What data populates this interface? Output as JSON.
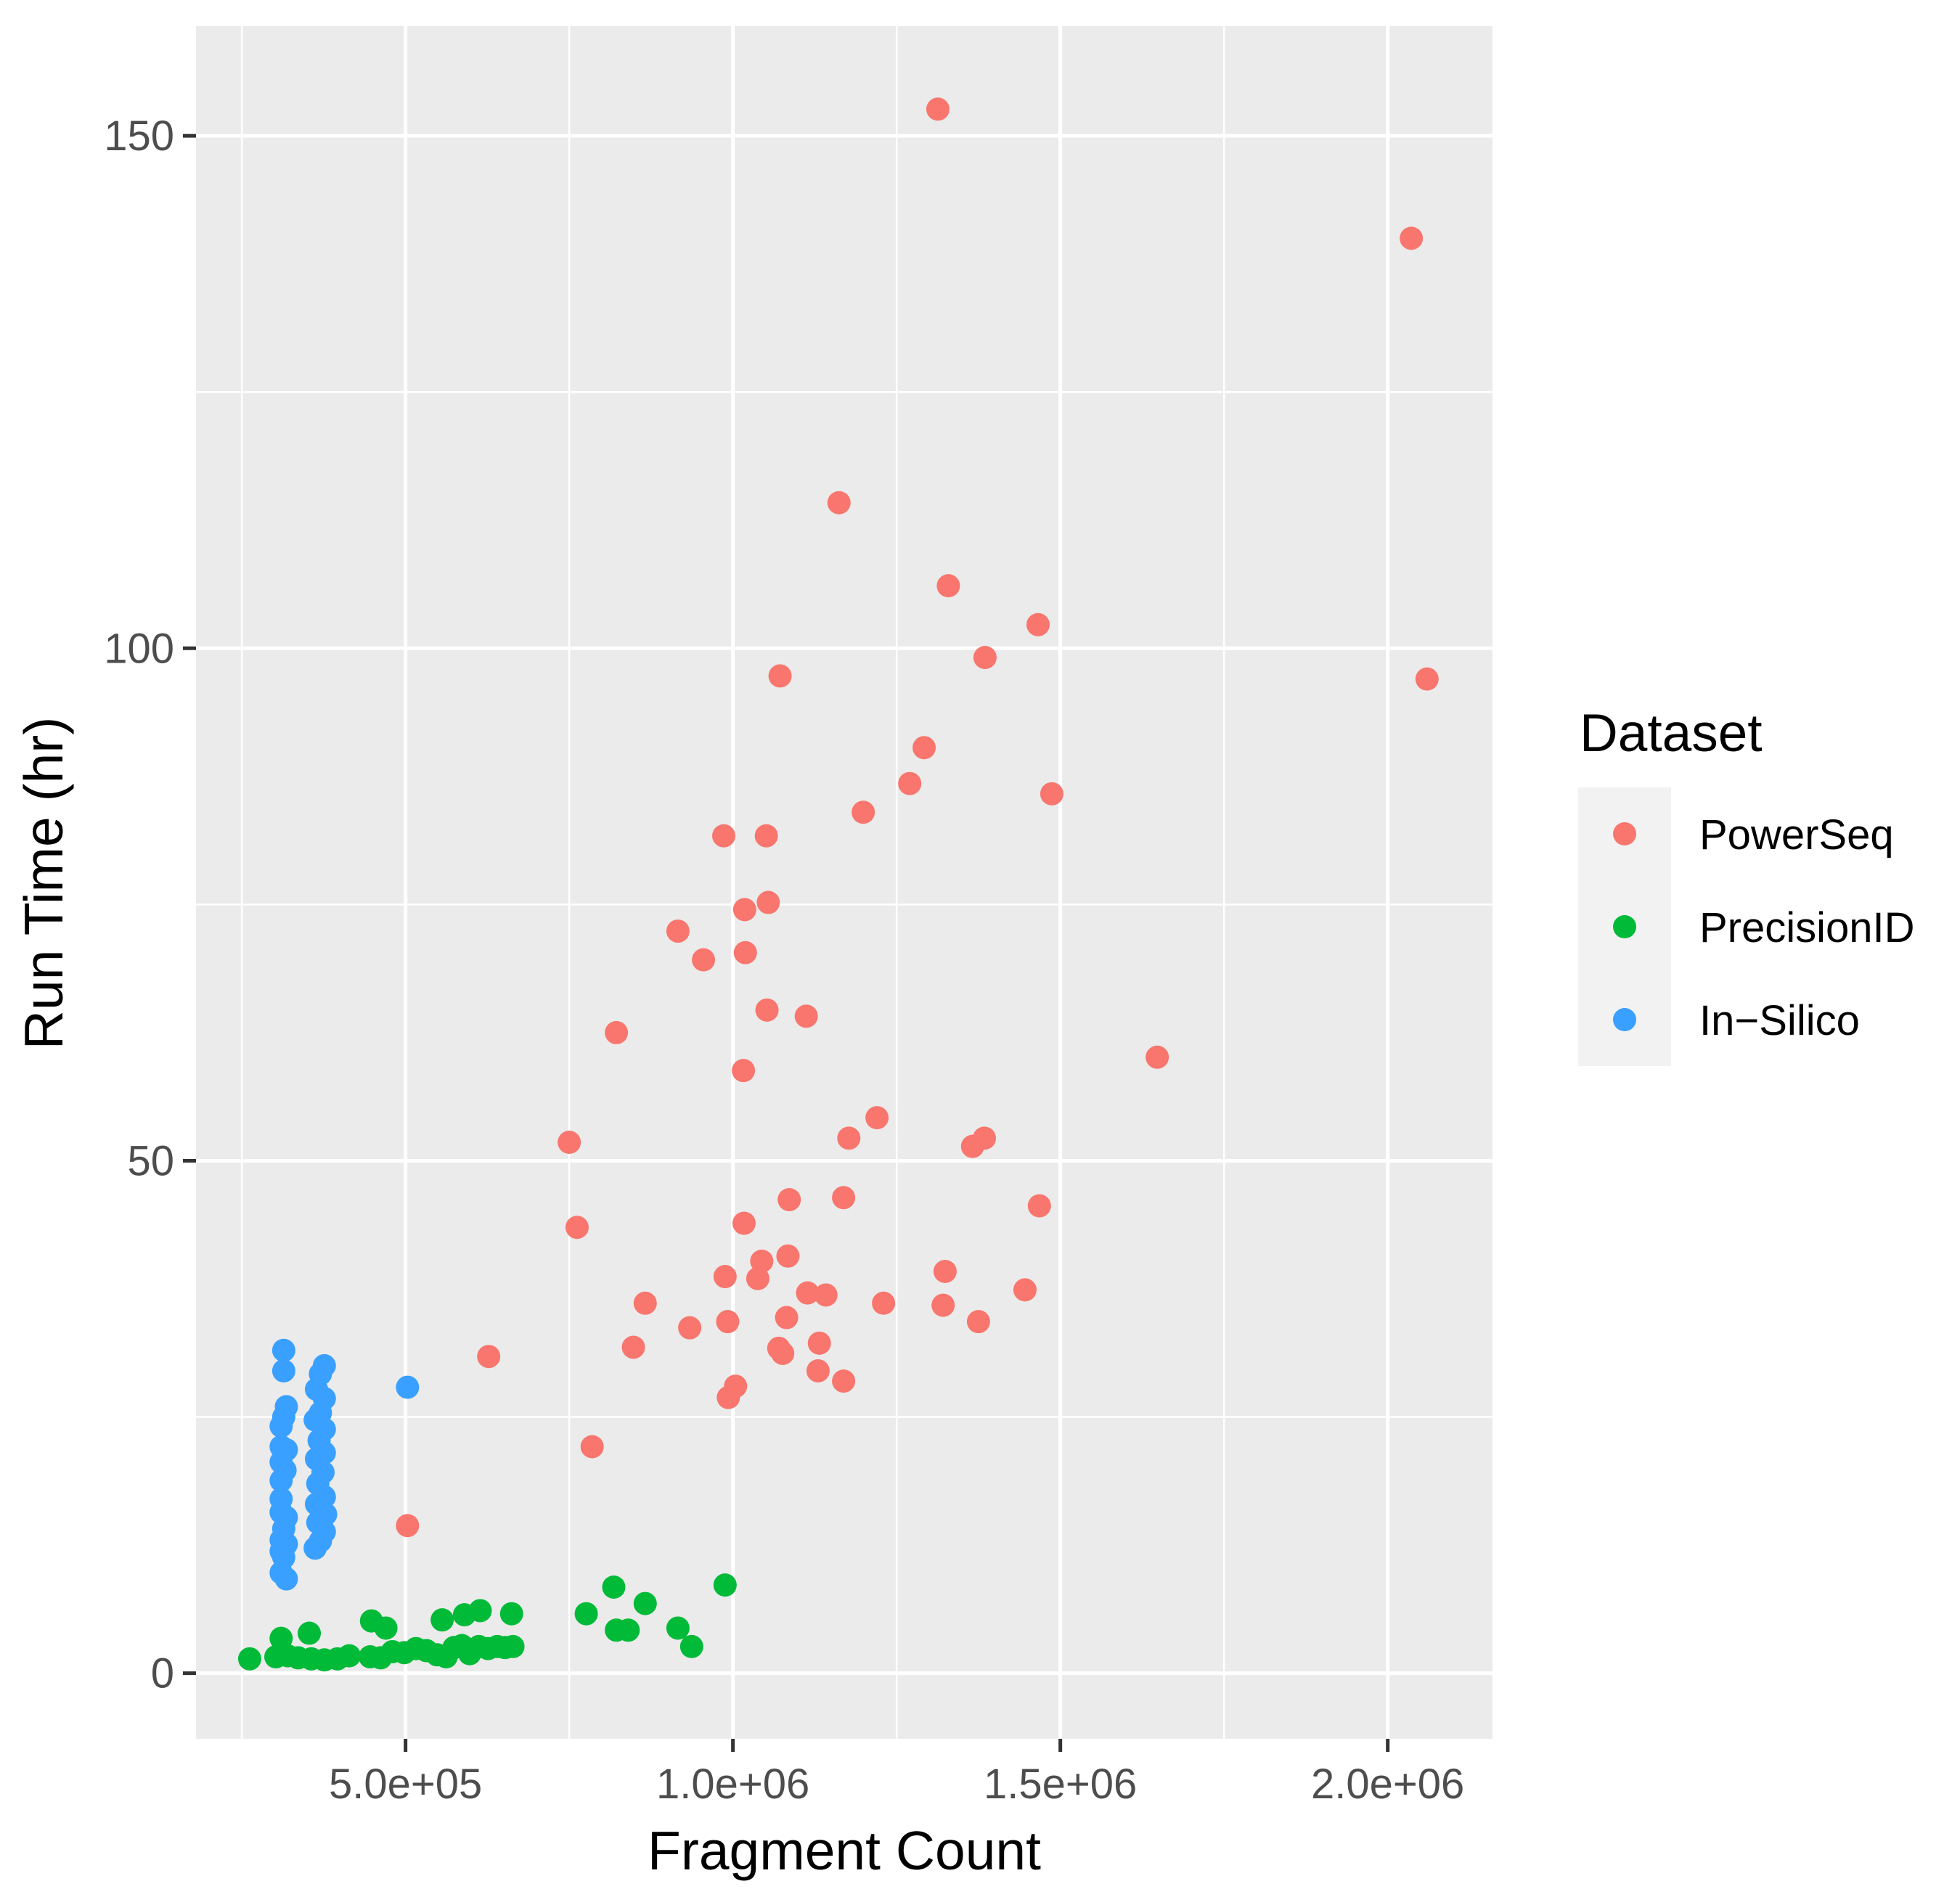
{
  "chart_data": {
    "type": "scatter",
    "xlabel": "Fragment Count",
    "ylabel": "Run Time (hr)",
    "xlim": [
      180000,
      2160000
    ],
    "ylim": [
      -6.4,
      160.7
    ],
    "x_ticks": [
      500000,
      1000000,
      1500000,
      2000000
    ],
    "x_tick_labels": [
      "5.0e+05",
      "1.0e+06",
      "1.5e+06",
      "2.0e+06"
    ],
    "y_ticks": [
      0,
      50,
      100,
      150
    ],
    "y_tick_labels": [
      "0",
      "50",
      "100",
      "150"
    ],
    "grid": true,
    "legend": {
      "title": "Dataset",
      "position": "right"
    },
    "series": [
      {
        "name": "PowerSeq",
        "color": "#F8766D",
        "points": [
          [
            1313000,
            152.6
          ],
          [
            2036000,
            140.0
          ],
          [
            1162000,
            114.2
          ],
          [
            1329000,
            106.1
          ],
          [
            1466000,
            102.3
          ],
          [
            1385000,
            99.1
          ],
          [
            1072000,
            97.3
          ],
          [
            2060000,
            97.0
          ],
          [
            1292000,
            90.3
          ],
          [
            1270000,
            86.8
          ],
          [
            1487000,
            85.8
          ],
          [
            1199000,
            84.0
          ],
          [
            986000,
            81.7
          ],
          [
            1051000,
            81.7
          ],
          [
            1054000,
            75.2
          ],
          [
            1018000,
            74.5
          ],
          [
            916000,
            72.4
          ],
          [
            1019000,
            70.3
          ],
          [
            955000,
            69.6
          ],
          [
            1052000,
            64.7
          ],
          [
            1112000,
            64.1
          ],
          [
            822000,
            62.5
          ],
          [
            1016000,
            58.8
          ],
          [
            1648000,
            60.1
          ],
          [
            1220000,
            54.2
          ],
          [
            1177000,
            52.2
          ],
          [
            1384000,
            52.2
          ],
          [
            1366000,
            51.4
          ],
          [
            750000,
            51.8
          ],
          [
            1169000,
            46.4
          ],
          [
            1086000,
            46.2
          ],
          [
            1468000,
            45.6
          ],
          [
            1017000,
            43.9
          ],
          [
            762000,
            43.5
          ],
          [
            1084000,
            40.7
          ],
          [
            1044000,
            40.2
          ],
          [
            988000,
            38.7
          ],
          [
            1038000,
            38.5
          ],
          [
            1324000,
            39.2
          ],
          [
            1114000,
            37.1
          ],
          [
            1142000,
            36.9
          ],
          [
            1446000,
            37.4
          ],
          [
            1230000,
            36.1
          ],
          [
            866000,
            36.1
          ],
          [
            1321000,
            35.9
          ],
          [
            992000,
            34.3
          ],
          [
            1082000,
            34.7
          ],
          [
            934000,
            33.7
          ],
          [
            1375000,
            34.3
          ],
          [
            848000,
            31.8
          ],
          [
            1070000,
            31.7
          ],
          [
            1132000,
            32.2
          ],
          [
            1076000,
            31.2
          ],
          [
            627000,
            30.9
          ],
          [
            1130000,
            29.5
          ],
          [
            1004000,
            28.0
          ],
          [
            993000,
            26.9
          ],
          [
            1169000,
            28.5
          ],
          [
            785000,
            22.1
          ],
          [
            503000,
            14.4
          ]
        ]
      },
      {
        "name": "PrecisionID",
        "color": "#00BA38",
        "points": [
          [
            988000,
            8.6
          ],
          [
            818000,
            8.4
          ],
          [
            866000,
            6.8
          ],
          [
            776000,
            5.8
          ],
          [
            662000,
            5.8
          ],
          [
            614000,
            6.1
          ],
          [
            590000,
            5.7
          ],
          [
            556000,
            5.2
          ],
          [
            448000,
            5.1
          ],
          [
            470000,
            4.4
          ],
          [
            822000,
            4.2
          ],
          [
            840000,
            4.2
          ],
          [
            916000,
            4.4
          ],
          [
            937000,
            2.6
          ],
          [
            353000,
            3.9
          ],
          [
            310000,
            3.4
          ],
          [
            262000,
            1.4
          ],
          [
            302000,
            1.6
          ],
          [
            320000,
            1.7
          ],
          [
            336000,
            1.5
          ],
          [
            356000,
            1.4
          ],
          [
            376000,
            1.3
          ],
          [
            396000,
            1.4
          ],
          [
            414000,
            1.7
          ],
          [
            446000,
            1.6
          ],
          [
            462000,
            1.5
          ],
          [
            480000,
            2.1
          ],
          [
            498000,
            2.0
          ],
          [
            516000,
            2.4
          ],
          [
            532000,
            2.2
          ],
          [
            548000,
            1.8
          ],
          [
            562000,
            1.6
          ],
          [
            574000,
            2.5
          ],
          [
            586000,
            2.7
          ],
          [
            598000,
            1.9
          ],
          [
            612000,
            2.6
          ],
          [
            626000,
            2.4
          ],
          [
            640000,
            2.6
          ],
          [
            652000,
            2.5
          ],
          [
            664000,
            2.6
          ]
        ]
      },
      {
        "name": "In−Silico",
        "color": "#3AA0FF",
        "points": [
          [
            314000,
            31.5
          ],
          [
            314000,
            29.5
          ],
          [
            318000,
            26.0
          ],
          [
            314000,
            25.0
          ],
          [
            310000,
            24.1
          ],
          [
            310000,
            22.1
          ],
          [
            310000,
            20.6
          ],
          [
            318000,
            21.8
          ],
          [
            316000,
            19.8
          ],
          [
            310000,
            18.8
          ],
          [
            310000,
            17.0
          ],
          [
            310000,
            15.7
          ],
          [
            318000,
            15.2
          ],
          [
            314000,
            14.1
          ],
          [
            310000,
            13.0
          ],
          [
            318000,
            12.6
          ],
          [
            310000,
            11.9
          ],
          [
            314000,
            11.3
          ],
          [
            310000,
            9.8
          ],
          [
            318000,
            9.2
          ],
          [
            376000,
            30.0
          ],
          [
            370000,
            29.2
          ],
          [
            364000,
            27.7
          ],
          [
            376000,
            26.8
          ],
          [
            370000,
            25.4
          ],
          [
            362000,
            24.7
          ],
          [
            376000,
            23.8
          ],
          [
            368000,
            22.7
          ],
          [
            376000,
            21.5
          ],
          [
            364000,
            20.9
          ],
          [
            374000,
            19.6
          ],
          [
            366000,
            18.5
          ],
          [
            376000,
            17.2
          ],
          [
            364000,
            16.5
          ],
          [
            378000,
            15.5
          ],
          [
            366000,
            14.7
          ],
          [
            376000,
            13.8
          ],
          [
            370000,
            12.9
          ],
          [
            362000,
            12.2
          ],
          [
            503000,
            27.9
          ]
        ]
      }
    ]
  }
}
